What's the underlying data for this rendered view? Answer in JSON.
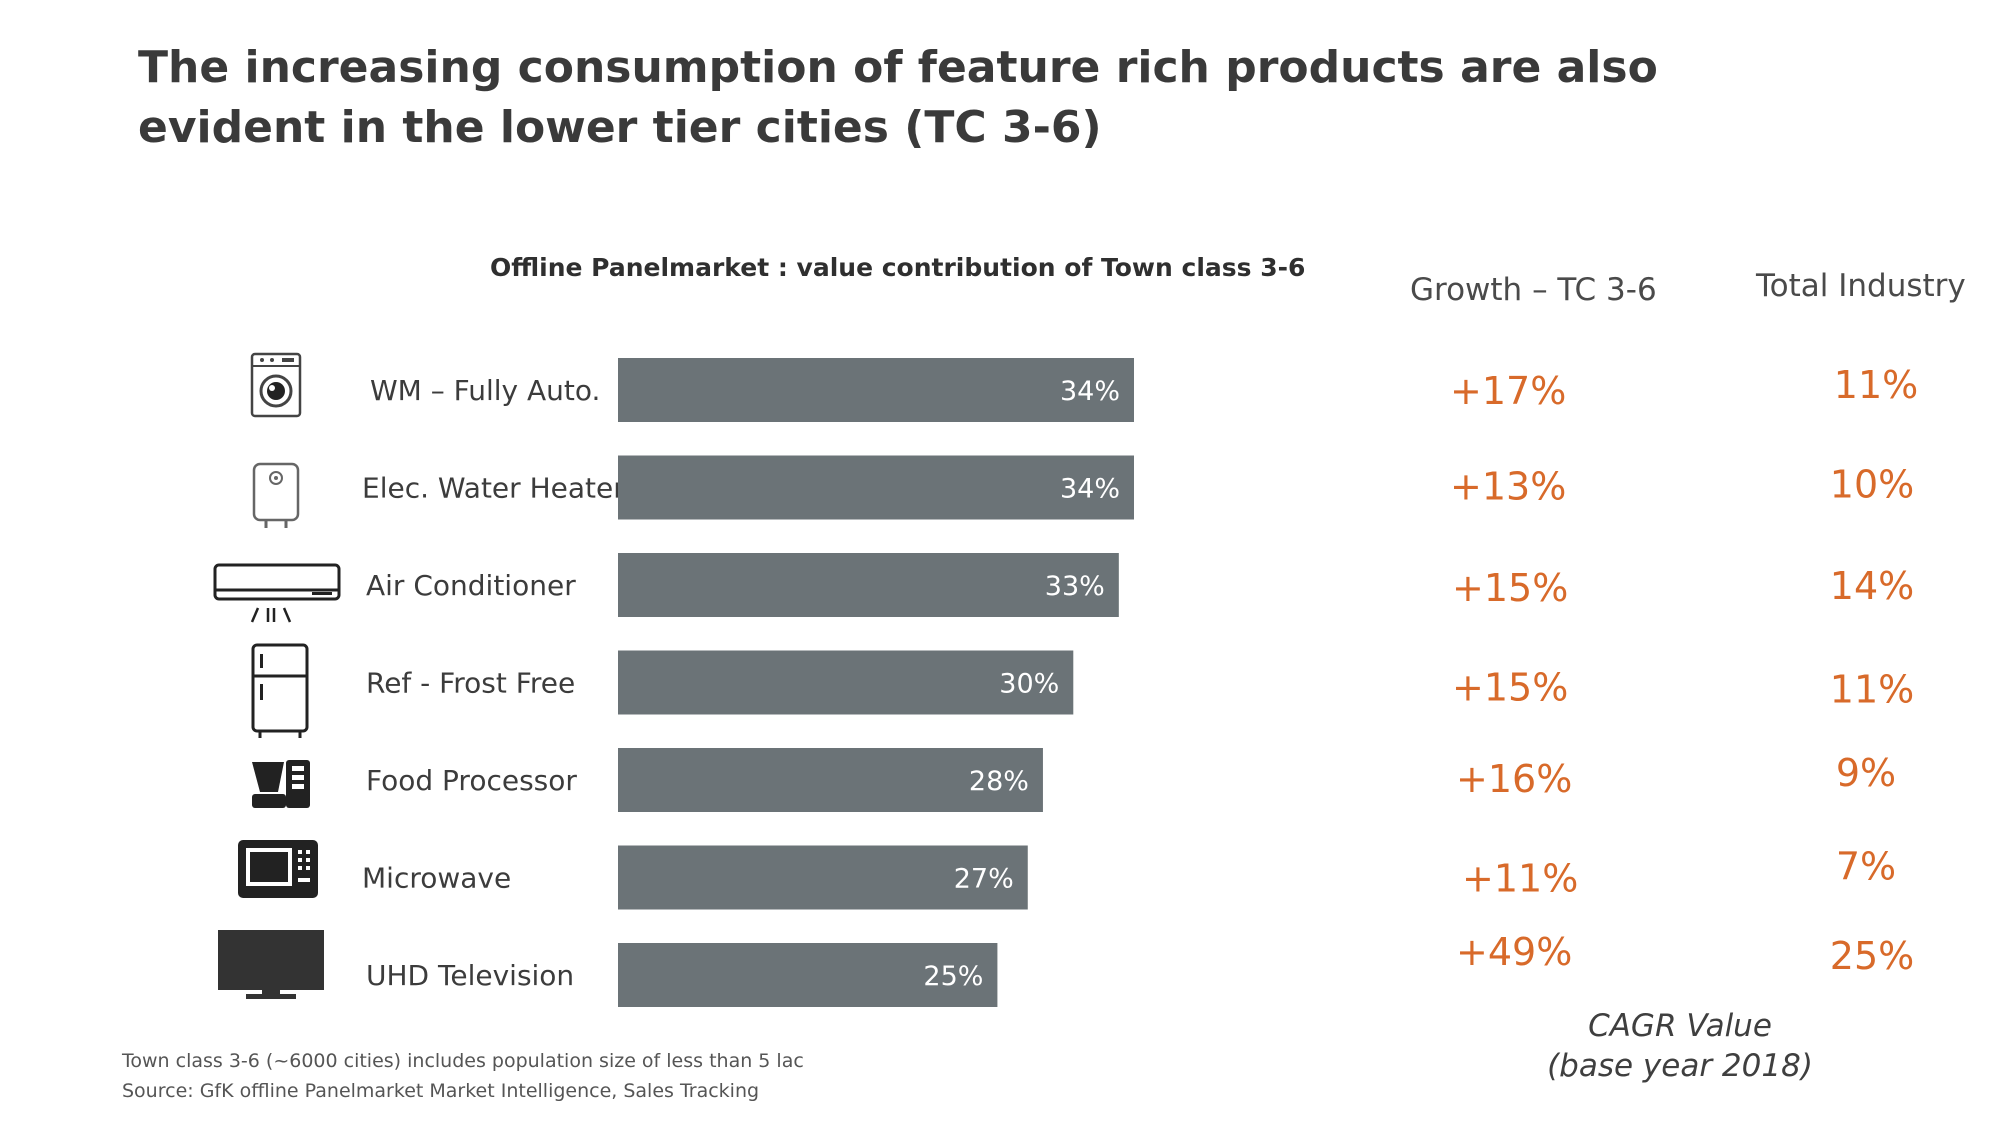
{
  "slide": {
    "title": "The increasing consumption of feature rich products are also evident in the lower tier cities (TC 3-6)",
    "growth_header": "Growth – TC 3-6",
    "total_header": "Total Industry",
    "cagr_line1": "CAGR Value",
    "cagr_line2": "(base year 2018)",
    "footnote_1": "Town class 3-6 (~6000 cities) includes population  size of less than 5 lac",
    "footnote_2": "Source: GfK offline  Panelmarket  Market Intelligence,  Sales Tracking"
  },
  "chart_data": {
    "type": "bar",
    "orientation": "horizontal",
    "title": "Offline Panelmarket : value contribution of Town class 3-6",
    "categories": [
      "WM – Fully Auto.",
      "Elec. Water Heater",
      "Air Conditioner",
      "Ref - Frost Free",
      "Food Processor",
      "Microwave",
      "UHD Television"
    ],
    "values": [
      34,
      34,
      33,
      30,
      28,
      27,
      25
    ],
    "value_labels": [
      "34%",
      "34%",
      "33%",
      "30%",
      "28%",
      "27%",
      "25%"
    ],
    "bar_color": "#6b7377",
    "xlim": [
      0,
      34
    ],
    "growth_tc36": [
      "+17%",
      "+13%",
      "+15%",
      "+15%",
      "+16%",
      "+11%",
      "+49%"
    ],
    "total_industry": [
      "11%",
      "10%",
      "14%",
      "11%",
      "9%",
      "7%",
      "25%"
    ],
    "accent_color": "#d86a2a"
  },
  "icons": [
    "washing-machine-icon",
    "water-heater-icon",
    "air-conditioner-icon",
    "refrigerator-icon",
    "food-processor-icon",
    "microwave-icon",
    "television-icon"
  ]
}
